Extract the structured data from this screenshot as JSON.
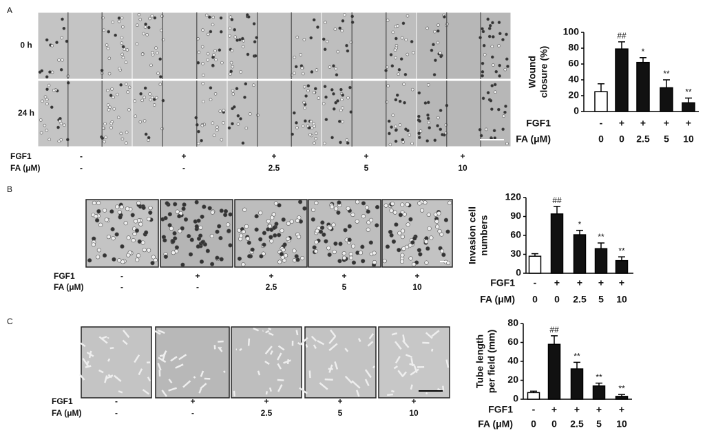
{
  "panels": [
    {
      "letter": "A",
      "row_labels": [
        "0 h",
        "24 h"
      ],
      "conditions": [
        {
          "label": "FGF1",
          "values": [
            "-",
            "+",
            "+",
            "+",
            "+"
          ]
        },
        {
          "label": "FA (μM)",
          "values": [
            "-",
            "-",
            "2.5",
            "5",
            "10"
          ]
        }
      ]
    },
    {
      "letter": "B",
      "conditions": [
        {
          "label": "FGF1",
          "values": [
            "-",
            "+",
            "+",
            "+",
            "+"
          ]
        },
        {
          "label": "FA (μM)",
          "values": [
            "-",
            "-",
            "2.5",
            "5",
            "10"
          ]
        }
      ]
    },
    {
      "letter": "C",
      "conditions": [
        {
          "label": "FGF1",
          "values": [
            "-",
            "+",
            "+",
            "+",
            "+"
          ]
        },
        {
          "label": "FA (μM)",
          "values": [
            "-",
            "-",
            "2.5",
            "5",
            "10"
          ]
        }
      ]
    }
  ],
  "chart_data": [
    {
      "type": "bar",
      "ylabel": [
        "Wound",
        "closure (%)"
      ],
      "category_rows": [
        {
          "label": "FGF1",
          "values": [
            "-",
            "+",
            "+",
            "+",
            "+"
          ]
        },
        {
          "label": "FA (μM)",
          "values": [
            "0",
            "0",
            "2.5",
            "5",
            "10"
          ]
        }
      ],
      "values": [
        25,
        79,
        62,
        30,
        11
      ],
      "errors": [
        10,
        9,
        6,
        10,
        6
      ],
      "annotations": [
        null,
        "##",
        "*",
        "**",
        "**"
      ],
      "colors": [
        "#ffffff",
        "#111111",
        "#111111",
        "#111111",
        "#111111"
      ],
      "ylim": [
        0,
        100
      ],
      "yticks": [
        0,
        20,
        40,
        60,
        80,
        100
      ]
    },
    {
      "type": "bar",
      "ylabel": [
        "Invasion cell",
        "numbers"
      ],
      "category_rows": [
        {
          "label": "FGF1",
          "values": [
            "-",
            "+",
            "+",
            "+",
            "+"
          ]
        },
        {
          "label": "FA (μM)",
          "values": [
            "0",
            "0",
            "2.5",
            "5",
            "10"
          ]
        }
      ],
      "values": [
        27,
        94,
        61,
        39,
        20
      ],
      "errors": [
        4,
        12,
        7,
        9,
        6
      ],
      "annotations": [
        null,
        "##",
        "*",
        "**",
        "**"
      ],
      "colors": [
        "#ffffff",
        "#111111",
        "#111111",
        "#111111",
        "#111111"
      ],
      "ylim": [
        0,
        120
      ],
      "yticks": [
        0,
        30,
        60,
        90,
        120
      ]
    },
    {
      "type": "bar",
      "ylabel": [
        "Tube length",
        "per field (mm)"
      ],
      "category_rows": [
        {
          "label": "FGF1",
          "values": [
            "-",
            "+",
            "+",
            "+",
            "+"
          ]
        },
        {
          "label": "FA (μM)",
          "values": [
            "0",
            "0",
            "2.5",
            "5",
            "10"
          ]
        }
      ],
      "values": [
        7,
        58,
        32,
        14,
        3
      ],
      "errors": [
        1.5,
        9,
        7,
        3,
        2
      ],
      "annotations": [
        null,
        "##",
        "**",
        "**",
        "**"
      ],
      "colors": [
        "#ffffff",
        "#111111",
        "#111111",
        "#111111",
        "#111111"
      ],
      "ylim": [
        0,
        80
      ],
      "yticks": [
        0,
        20,
        40,
        60,
        80
      ]
    }
  ]
}
